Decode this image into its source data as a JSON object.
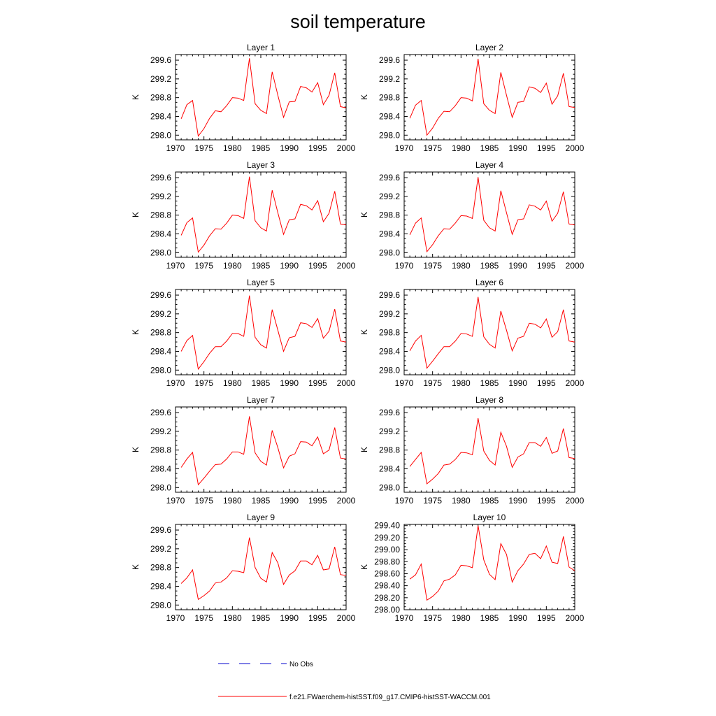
{
  "figure_title": "soil temperature",
  "colors": {
    "model": "#ff0000",
    "obs": "#0000cc",
    "frame": "#000000"
  },
  "legend": {
    "entries": [
      {
        "label": "No Obs",
        "style": "dashed",
        "color": "#0000cc"
      },
      {
        "label": "f.e21.FWaerchem-histSST.f09_g17.CMIP6-histSST-WACCM.001",
        "style": "solid",
        "color": "#ff0000"
      }
    ]
  },
  "chart_data": [
    {
      "type": "line",
      "title": "Layer 1",
      "ylabel": "K",
      "xlim": [
        1970,
        2000
      ],
      "ylim": [
        297.9,
        299.72
      ],
      "xticks": [
        1970,
        1975,
        1980,
        1985,
        1990,
        1995,
        2000
      ],
      "xtick_labels": [
        "1970",
        "1975",
        "1980",
        "1985",
        "1990",
        "1995",
        "2000"
      ],
      "yticks": [
        298.0,
        298.4,
        298.8,
        299.2,
        299.6
      ],
      "ytick_labels": [
        "298.0",
        "298.4",
        "298.8",
        "299.2",
        "299.6"
      ],
      "x": [
        1971,
        1972,
        1973,
        1974,
        1975,
        1976,
        1977,
        1978,
        1979,
        1980,
        1981,
        1982,
        1983,
        1984,
        1985,
        1986,
        1987,
        1988,
        1989,
        1990,
        1991,
        1992,
        1993,
        1994,
        1995,
        1996,
        1997,
        1998,
        1999,
        2000
      ],
      "series": [
        {
          "values": [
            298.35,
            298.65,
            298.74,
            297.98,
            298.14,
            298.36,
            298.52,
            298.5,
            298.63,
            298.8,
            298.79,
            298.74,
            299.64,
            298.67,
            298.53,
            298.46,
            299.35,
            298.85,
            298.38,
            298.71,
            298.72,
            299.04,
            299.01,
            298.92,
            299.12,
            298.65,
            298.85,
            299.33,
            298.61,
            298.58
          ]
        }
      ]
    },
    {
      "type": "line",
      "title": "Layer 2",
      "ylabel": "K",
      "xlim": [
        1970,
        2000
      ],
      "ylim": [
        297.9,
        299.72
      ],
      "xticks": [
        1970,
        1975,
        1980,
        1985,
        1990,
        1995,
        2000
      ],
      "xtick_labels": [
        "1970",
        "1975",
        "1980",
        "1985",
        "1990",
        "1995",
        "2000"
      ],
      "yticks": [
        298.0,
        298.4,
        298.8,
        299.2,
        299.6
      ],
      "ytick_labels": [
        "298.0",
        "298.4",
        "298.8",
        "299.2",
        "299.6"
      ],
      "x": [
        1971,
        1972,
        1973,
        1974,
        1975,
        1976,
        1977,
        1978,
        1979,
        1980,
        1981,
        1982,
        1983,
        1984,
        1985,
        1986,
        1987,
        1988,
        1989,
        1990,
        1991,
        1992,
        1993,
        1994,
        1995,
        1996,
        1997,
        1998,
        1999,
        2000
      ],
      "series": [
        {
          "values": [
            298.36,
            298.64,
            298.74,
            298.0,
            298.15,
            298.36,
            298.51,
            298.5,
            298.63,
            298.8,
            298.79,
            298.73,
            299.63,
            298.67,
            298.53,
            298.46,
            299.34,
            298.85,
            298.38,
            298.7,
            298.72,
            299.03,
            299.0,
            298.91,
            299.11,
            298.66,
            298.84,
            299.32,
            298.61,
            298.59
          ]
        }
      ]
    },
    {
      "type": "line",
      "title": "Layer 3",
      "ylabel": "K",
      "xlim": [
        1970,
        2000
      ],
      "ylim": [
        297.9,
        299.72
      ],
      "xticks": [
        1970,
        1975,
        1980,
        1985,
        1990,
        1995,
        2000
      ],
      "xtick_labels": [
        "1970",
        "1975",
        "1980",
        "1985",
        "1990",
        "1995",
        "2000"
      ],
      "yticks": [
        298.0,
        298.4,
        298.8,
        299.2,
        299.6
      ],
      "ytick_labels": [
        "298.0",
        "298.4",
        "298.8",
        "299.2",
        "299.6"
      ],
      "x": [
        1971,
        1972,
        1973,
        1974,
        1975,
        1976,
        1977,
        1978,
        1979,
        1980,
        1981,
        1982,
        1983,
        1984,
        1985,
        1986,
        1987,
        1988,
        1989,
        1990,
        1991,
        1992,
        1993,
        1994,
        1995,
        1996,
        1997,
        1998,
        1999,
        2000
      ],
      "series": [
        {
          "values": [
            298.37,
            298.64,
            298.74,
            298.01,
            298.16,
            298.36,
            298.51,
            298.5,
            298.63,
            298.8,
            298.79,
            298.73,
            299.62,
            298.68,
            298.53,
            298.46,
            299.33,
            298.85,
            298.39,
            298.7,
            298.72,
            299.03,
            299.0,
            298.91,
            299.11,
            298.66,
            298.84,
            299.31,
            298.61,
            298.59
          ]
        }
      ]
    },
    {
      "type": "line",
      "title": "Layer 4",
      "ylabel": "K",
      "xlim": [
        1970,
        2000
      ],
      "ylim": [
        297.9,
        299.72
      ],
      "xticks": [
        1970,
        1975,
        1980,
        1985,
        1990,
        1995,
        2000
      ],
      "xtick_labels": [
        "1970",
        "1975",
        "1980",
        "1985",
        "1990",
        "1995",
        "2000"
      ],
      "yticks": [
        298.0,
        298.4,
        298.8,
        299.2,
        299.6
      ],
      "ytick_labels": [
        "298.0",
        "298.4",
        "298.8",
        "299.2",
        "299.6"
      ],
      "x": [
        1971,
        1972,
        1973,
        1974,
        1975,
        1976,
        1977,
        1978,
        1979,
        1980,
        1981,
        1982,
        1983,
        1984,
        1985,
        1986,
        1987,
        1988,
        1989,
        1990,
        1991,
        1992,
        1993,
        1994,
        1995,
        1996,
        1997,
        1998,
        1999,
        2000
      ],
      "series": [
        {
          "values": [
            298.38,
            298.63,
            298.74,
            298.02,
            298.17,
            298.36,
            298.51,
            298.5,
            298.63,
            298.79,
            298.78,
            298.73,
            299.61,
            298.69,
            298.53,
            298.46,
            299.32,
            298.85,
            298.39,
            298.7,
            298.72,
            299.02,
            298.99,
            298.91,
            299.1,
            298.67,
            298.84,
            299.3,
            298.61,
            298.59
          ]
        }
      ]
    },
    {
      "type": "line",
      "title": "Layer 5",
      "ylabel": "K",
      "xlim": [
        1970,
        2000
      ],
      "ylim": [
        297.9,
        299.72
      ],
      "xticks": [
        1970,
        1975,
        1980,
        1985,
        1990,
        1995,
        2000
      ],
      "xtick_labels": [
        "1970",
        "1975",
        "1980",
        "1985",
        "1990",
        "1995",
        "2000"
      ],
      "yticks": [
        298.0,
        298.4,
        298.8,
        299.2,
        299.6
      ],
      "ytick_labels": [
        "298.0",
        "298.4",
        "298.8",
        "299.2",
        "299.6"
      ],
      "x": [
        1971,
        1972,
        1973,
        1974,
        1975,
        1976,
        1977,
        1978,
        1979,
        1980,
        1981,
        1982,
        1983,
        1984,
        1985,
        1986,
        1987,
        1988,
        1989,
        1990,
        1991,
        1992,
        1993,
        1994,
        1995,
        1996,
        1997,
        1998,
        1999,
        2000
      ],
      "series": [
        {
          "values": [
            298.4,
            298.63,
            298.74,
            298.02,
            298.18,
            298.36,
            298.5,
            298.5,
            298.62,
            298.78,
            298.78,
            298.72,
            299.59,
            298.7,
            298.54,
            298.47,
            299.29,
            298.85,
            298.4,
            298.69,
            298.72,
            299.01,
            298.99,
            298.91,
            299.1,
            298.68,
            298.83,
            299.3,
            298.62,
            298.6
          ]
        }
      ]
    },
    {
      "type": "line",
      "title": "Layer 6",
      "ylabel": "K",
      "xlim": [
        1970,
        2000
      ],
      "ylim": [
        297.9,
        299.72
      ],
      "xticks": [
        1970,
        1975,
        1980,
        1985,
        1990,
        1995,
        2000
      ],
      "xtick_labels": [
        "1970",
        "1975",
        "1980",
        "1985",
        "1990",
        "1995",
        "2000"
      ],
      "yticks": [
        298.0,
        298.4,
        298.8,
        299.2,
        299.6
      ],
      "ytick_labels": [
        "298.0",
        "298.4",
        "298.8",
        "299.2",
        "299.6"
      ],
      "x": [
        1971,
        1972,
        1973,
        1974,
        1975,
        1976,
        1977,
        1978,
        1979,
        1980,
        1981,
        1982,
        1983,
        1984,
        1985,
        1986,
        1987,
        1988,
        1989,
        1990,
        1991,
        1992,
        1993,
        1994,
        1995,
        1996,
        1997,
        1998,
        1999,
        2000
      ],
      "series": [
        {
          "values": [
            298.41,
            298.62,
            298.74,
            298.04,
            298.19,
            298.35,
            298.5,
            298.5,
            298.62,
            298.78,
            298.77,
            298.72,
            299.56,
            298.71,
            298.55,
            298.47,
            299.26,
            298.85,
            298.41,
            298.68,
            298.72,
            299.0,
            298.98,
            298.9,
            299.09,
            298.7,
            298.82,
            299.29,
            298.62,
            298.6
          ]
        }
      ]
    },
    {
      "type": "line",
      "title": "Layer 7",
      "ylabel": "K",
      "xlim": [
        1970,
        2000
      ],
      "ylim": [
        297.9,
        299.72
      ],
      "xticks": [
        1970,
        1975,
        1980,
        1985,
        1990,
        1995,
        2000
      ],
      "xtick_labels": [
        "1970",
        "1975",
        "1980",
        "1985",
        "1990",
        "1995",
        "2000"
      ],
      "yticks": [
        298.0,
        298.4,
        298.8,
        299.2,
        299.6
      ],
      "ytick_labels": [
        "298.0",
        "298.4",
        "298.8",
        "299.2",
        "299.6"
      ],
      "x": [
        1971,
        1972,
        1973,
        1974,
        1975,
        1976,
        1977,
        1978,
        1979,
        1980,
        1981,
        1982,
        1983,
        1984,
        1985,
        1986,
        1987,
        1988,
        1989,
        1990,
        1991,
        1992,
        1993,
        1994,
        1995,
        1996,
        1997,
        1998,
        1999,
        2000
      ],
      "series": [
        {
          "values": [
            298.43,
            298.61,
            298.75,
            298.06,
            298.2,
            298.35,
            298.49,
            298.5,
            298.61,
            298.76,
            298.76,
            298.71,
            299.52,
            298.74,
            298.56,
            298.48,
            299.22,
            298.85,
            298.42,
            298.67,
            298.72,
            298.98,
            298.97,
            298.89,
            299.08,
            298.72,
            298.8,
            299.28,
            298.63,
            298.61
          ]
        }
      ]
    },
    {
      "type": "line",
      "title": "Layer 8",
      "ylabel": "K",
      "xlim": [
        1970,
        2000
      ],
      "ylim": [
        297.9,
        299.72
      ],
      "xticks": [
        1970,
        1975,
        1980,
        1985,
        1990,
        1995,
        2000
      ],
      "xtick_labels": [
        "1970",
        "1975",
        "1980",
        "1985",
        "1990",
        "1995",
        "2000"
      ],
      "yticks": [
        298.0,
        298.4,
        298.8,
        299.2,
        299.6
      ],
      "ytick_labels": [
        "298.0",
        "298.4",
        "298.8",
        "299.2",
        "299.6"
      ],
      "x": [
        1971,
        1972,
        1973,
        1974,
        1975,
        1976,
        1977,
        1978,
        1979,
        1980,
        1981,
        1982,
        1983,
        1984,
        1985,
        1986,
        1987,
        1988,
        1989,
        1990,
        1991,
        1992,
        1993,
        1994,
        1995,
        1996,
        1997,
        1998,
        1999,
        2000
      ],
      "series": [
        {
          "values": [
            298.45,
            298.6,
            298.75,
            298.08,
            298.18,
            298.3,
            298.48,
            298.5,
            298.6,
            298.75,
            298.74,
            298.7,
            299.48,
            298.78,
            298.58,
            298.48,
            299.18,
            298.88,
            298.43,
            298.65,
            298.72,
            298.96,
            298.96,
            298.88,
            299.07,
            298.73,
            298.78,
            299.26,
            298.64,
            298.62
          ]
        }
      ]
    },
    {
      "type": "line",
      "title": "Layer 9",
      "ylabel": "K",
      "xlim": [
        1970,
        2000
      ],
      "ylim": [
        297.9,
        299.72
      ],
      "xticks": [
        1970,
        1975,
        1980,
        1985,
        1990,
        1995,
        2000
      ],
      "xtick_labels": [
        "1970",
        "1975",
        "1980",
        "1985",
        "1990",
        "1995",
        "2000"
      ],
      "yticks": [
        298.0,
        298.4,
        298.8,
        299.2,
        299.6
      ],
      "ytick_labels": [
        "298.0",
        "298.4",
        "298.8",
        "299.2",
        "299.6"
      ],
      "x": [
        1971,
        1972,
        1973,
        1974,
        1975,
        1976,
        1977,
        1978,
        1979,
        1980,
        1981,
        1982,
        1983,
        1984,
        1985,
        1986,
        1987,
        1988,
        1989,
        1990,
        1991,
        1992,
        1993,
        1994,
        1995,
        1996,
        1997,
        1998,
        1999,
        2000
      ],
      "series": [
        {
          "values": [
            298.46,
            298.58,
            298.75,
            298.12,
            298.2,
            298.3,
            298.47,
            298.49,
            298.58,
            298.73,
            298.72,
            298.69,
            299.44,
            298.8,
            298.57,
            298.49,
            299.12,
            298.9,
            298.44,
            298.64,
            298.73,
            298.94,
            298.94,
            298.86,
            299.06,
            298.75,
            298.77,
            299.24,
            298.65,
            298.63
          ]
        }
      ]
    },
    {
      "type": "line",
      "title": "Layer 10",
      "ylabel": "K",
      "xlim": [
        1970,
        2000
      ],
      "ylim": [
        298.0,
        299.42
      ],
      "xticks": [
        1970,
        1975,
        1980,
        1985,
        1990,
        1995,
        2000
      ],
      "xtick_labels": [
        "1970",
        "1975",
        "1980",
        "1985",
        "1990",
        "1995",
        "2000"
      ],
      "yticks": [
        298.0,
        298.2,
        298.4,
        298.6,
        298.8,
        299.0,
        299.2,
        299.4
      ],
      "ytick_labels": [
        "298.00",
        "298.20",
        "298.40",
        "298.60",
        "298.80",
        "299.00",
        "299.20",
        "299.40"
      ],
      "x": [
        1971,
        1972,
        1973,
        1974,
        1975,
        1976,
        1977,
        1978,
        1979,
        1980,
        1981,
        1982,
        1983,
        1984,
        1985,
        1986,
        1987,
        1988,
        1989,
        1990,
        1991,
        1992,
        1993,
        1994,
        1995,
        1996,
        1997,
        1998,
        1999,
        2000
      ],
      "series": [
        {
          "values": [
            298.51,
            298.58,
            298.76,
            298.16,
            298.22,
            298.31,
            298.48,
            298.51,
            298.58,
            298.74,
            298.73,
            298.7,
            299.4,
            298.83,
            298.59,
            298.5,
            299.1,
            298.92,
            298.46,
            298.65,
            298.76,
            298.92,
            298.94,
            298.85,
            299.06,
            298.79,
            298.77,
            299.22,
            298.71,
            298.65
          ]
        }
      ]
    }
  ]
}
